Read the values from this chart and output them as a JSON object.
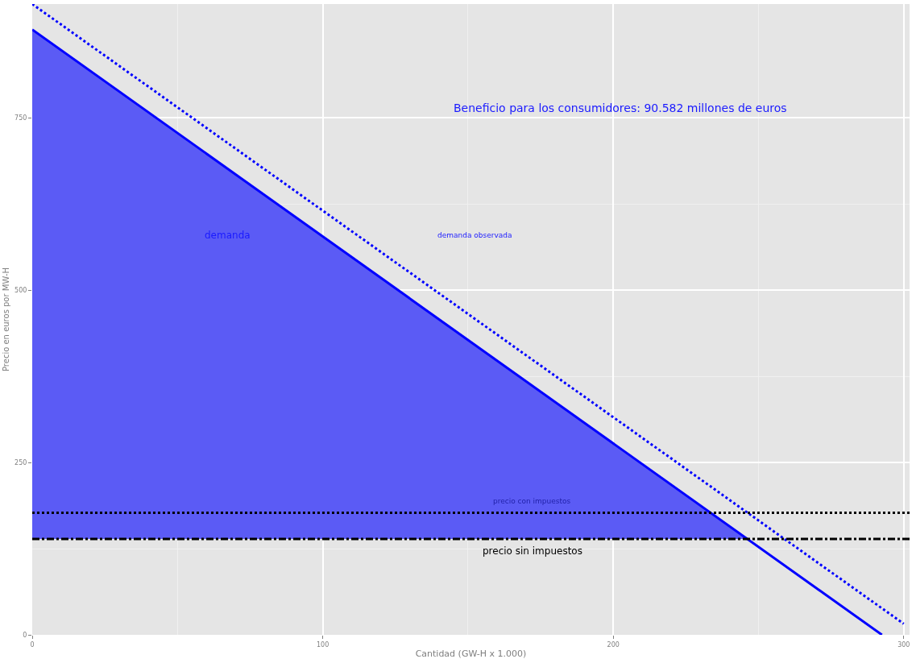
{
  "chart_data": {
    "type": "line",
    "xlabel": "Cantidad (GW-H x 1.000)",
    "ylabel": "Precio en euros por MW-H",
    "xlim": [
      0,
      302
    ],
    "ylim": [
      0,
      915
    ],
    "xticks": [
      0,
      100,
      200,
      300
    ],
    "yticks": [
      0,
      250,
      500,
      750
    ],
    "grid": true,
    "series": [
      {
        "type": "area",
        "color": "#5b5bf5",
        "x": [
          0,
          246,
          0
        ],
        "values": [
          878,
          139,
          139
        ]
      },
      {
        "color": "#0000ff",
        "x": [
          0,
          292.5
        ],
        "values": [
          878,
          0
        ],
        "line_style": "solid"
      },
      {
        "color": "#0000ff",
        "x": [
          0,
          300
        ],
        "values": [
          915,
          16
        ],
        "line_style": "dotted"
      }
    ],
    "ref_lines": [
      {
        "axis": "y",
        "value": 177,
        "label": "precio con impuestos",
        "color": "#000000",
        "line_style": "dotted"
      },
      {
        "axis": "y",
        "value": 139,
        "label": "precio sin impuestos",
        "color": "#000000",
        "line_style": "dashdot"
      }
    ],
    "annotations": [
      "demanda",
      "demanda observada",
      "Beneficio para los consumidores: 90.582 millones de euros"
    ]
  }
}
